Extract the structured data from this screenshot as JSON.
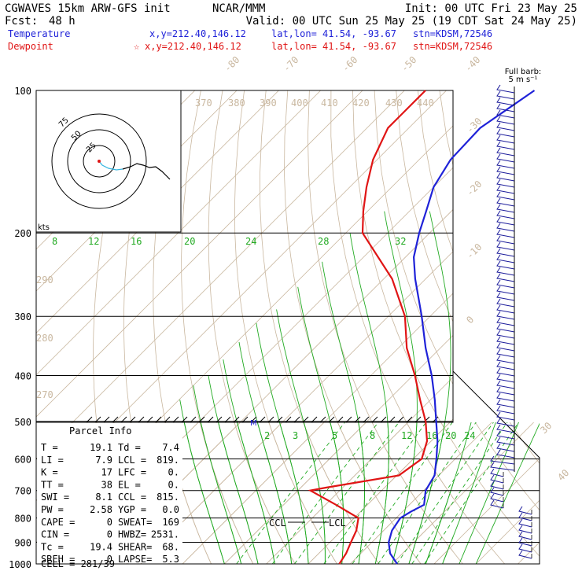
{
  "header": {
    "model": "CGWAVES 15km ARW-GFS init",
    "org": "NCAR/MMM",
    "init": "Init: 00 UTC Fri 23 May 25",
    "fcst_label": "Fcst:",
    "fcst_value": "48 h",
    "valid": "Valid: 00 UTC Sun 25 May 25 (19 CDT Sat 24 May 25)",
    "temp_label": "Temperature",
    "temp_loc": "x,y=212.40,146.12",
    "temp_latlon": "lat,lon= 41.54, -93.67",
    "temp_stn": "stn=KDSM,72546",
    "dew_label": "Dewpoint",
    "dew_loc": "x,y=212.40,146.12",
    "dew_latlon": "lat,lon= 41.54, -93.67",
    "dew_stn": "stn=KDSM,72546",
    "barb_title": "Full barb:",
    "barb_unit": "5 m s⁻¹"
  },
  "colors": {
    "temperature": "#1f22d8",
    "dewpoint": "#e01515",
    "isotherm": "#c9b79f",
    "mixing": "#22aa22",
    "barb": "#1a1a9a"
  },
  "chart_data": {
    "type": "line",
    "title": "",
    "ylabel": "",
    "pressure_labels": [
      "100",
      "200",
      "300",
      "400",
      "500",
      "600",
      "700",
      "800",
      "900",
      "1000"
    ],
    "pressure_levels": [
      100,
      200,
      300,
      400,
      500,
      600,
      700,
      800,
      900,
      1000
    ],
    "isotherm_labels": [
      "-80",
      "-70",
      "-60",
      "-50",
      "-40",
      "-30",
      "-20",
      "-10",
      "0",
      "30",
      "40"
    ],
    "theta_labels": [
      "370",
      "380",
      "390",
      "400",
      "410",
      "420",
      "430",
      "440",
      "290",
      "280",
      "270"
    ],
    "mixing_ratio_labels": [
      "8",
      "12",
      "16",
      "20",
      "24",
      "28",
      "32"
    ],
    "mixing_ratio_labels_low": [
      "2",
      "3",
      "5",
      "8",
      "12",
      "16",
      "20",
      "24"
    ],
    "series": [
      {
        "name": "Temperature",
        "key": "temperature",
        "points": [
          [
            1000,
            21.2
          ],
          [
            950,
            17.0
          ],
          [
            900,
            14.0
          ],
          [
            850,
            12.0
          ],
          [
            800,
            11.0
          ],
          [
            775,
            12.0
          ],
          [
            750,
            13.5
          ],
          [
            700,
            10.5
          ],
          [
            650,
            9.0
          ],
          [
            600,
            5.5
          ],
          [
            550,
            1.5
          ],
          [
            500,
            -3.5
          ],
          [
            450,
            -9.0
          ],
          [
            400,
            -15.5
          ],
          [
            350,
            -23.5
          ],
          [
            300,
            -32.0
          ],
          [
            250,
            -42.5
          ],
          [
            225,
            -48.0
          ],
          [
            200,
            -52.5
          ],
          [
            180,
            -56.0
          ],
          [
            160,
            -60.0
          ],
          [
            140,
            -62.5
          ],
          [
            120,
            -63.0
          ],
          [
            100,
            -59.0
          ]
        ]
      },
      {
        "name": "Dewpoint",
        "key": "dewpoint",
        "points": [
          [
            1000,
            7.4
          ],
          [
            950,
            6.5
          ],
          [
            900,
            5.0
          ],
          [
            850,
            3.5
          ],
          [
            800,
            1.0
          ],
          [
            750,
            -7.5
          ],
          [
            700,
            -17.0
          ],
          [
            690,
            -14.0
          ],
          [
            650,
            0.5
          ],
          [
            600,
            2.0
          ],
          [
            550,
            -1.0
          ],
          [
            500,
            -6.0
          ],
          [
            450,
            -12.5
          ],
          [
            400,
            -19.5
          ],
          [
            350,
            -28.0
          ],
          [
            300,
            -36.0
          ],
          [
            250,
            -48.0
          ],
          [
            200,
            -66.0
          ],
          [
            180,
            -71.0
          ],
          [
            160,
            -76.0
          ],
          [
            140,
            -81.0
          ],
          [
            120,
            -85.0
          ],
          [
            100,
            -85.0
          ]
        ]
      }
    ],
    "markers": [
      "M",
      "CCL",
      "LCL"
    ],
    "hodograph": {
      "ring_labels": [
        "75",
        "50",
        "25"
      ],
      "unit": "kts"
    }
  },
  "parcel": {
    "title": "Parcel Info",
    "rows": [
      [
        "T  =",
        "19.1",
        "Td =",
        "7.4"
      ],
      [
        "LI =",
        "7.9",
        "LCL =",
        "819."
      ],
      [
        "K  =",
        "17",
        "LFC =",
        "0."
      ],
      [
        "TT =",
        "38",
        "EL =",
        "0."
      ],
      [
        "SWI =",
        "8.1",
        "CCL =",
        "815."
      ],
      [
        "PW =",
        "2.58",
        "YGP =",
        "0.0"
      ],
      [
        "CAPE =",
        "0",
        "SWEAT=",
        "169"
      ],
      [
        "CIN =",
        "0",
        "HWBZ=",
        "2531."
      ],
      [
        "Tc =",
        "19.4",
        "SHEAR=",
        "68."
      ],
      [
        "SREH =",
        "0",
        "LAPSE=",
        "5.3"
      ]
    ],
    "cell": "CELL = 281/39"
  }
}
